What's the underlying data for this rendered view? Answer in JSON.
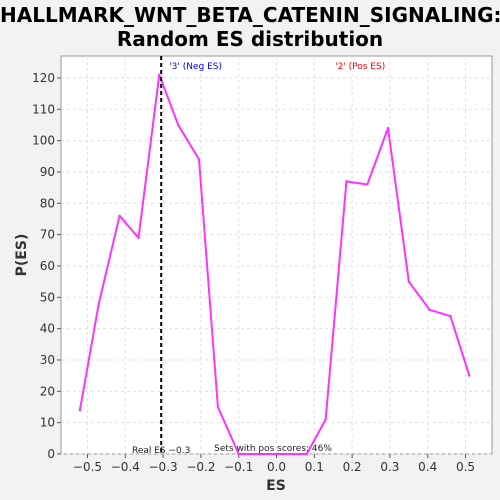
{
  "chart_data": {
    "type": "line",
    "title_lines": [
      "HALLMARK_WNT_BETA_CATENIN_SIGNALING:",
      "Random ES distribution"
    ],
    "xlabel": "ES",
    "ylabel": "P(ES)",
    "xlim": [
      -0.57,
      0.57
    ],
    "ylim": [
      0,
      127
    ],
    "x_ticks": [
      -0.5,
      -0.4,
      -0.3,
      -0.2,
      -0.1,
      0.0,
      0.1,
      0.2,
      0.3,
      0.4,
      0.5
    ],
    "y_ticks": [
      0,
      10,
      20,
      30,
      40,
      50,
      60,
      70,
      80,
      90,
      100,
      110,
      120
    ],
    "grid": true,
    "series": [
      {
        "color": "#ff33ff",
        "x": [
          -0.52,
          -0.47,
          -0.415,
          -0.365,
          -0.31,
          -0.26,
          -0.205,
          -0.155,
          -0.1,
          -0.045,
          0.005,
          0.06,
          0.08,
          0.13,
          0.185,
          0.24,
          0.295,
          0.35,
          0.405,
          0.46,
          0.51
        ],
        "y": [
          14,
          48,
          76,
          69,
          121,
          105,
          94,
          15,
          0,
          0,
          0,
          0,
          0,
          11,
          87,
          86,
          104,
          55,
          46,
          44,
          25
        ]
      }
    ],
    "real_es_line": {
      "x": -0.305,
      "color": "#000000",
      "label": "Real ES −0.3"
    },
    "annotations": {
      "neg_label": {
        "text": "'3' (Neg ES)",
        "color": "#0000ff"
      },
      "pos_label": {
        "text": "'2' (Pos ES)",
        "color": "#ff0000"
      },
      "pos_scores": {
        "text": "Sets with pos scores: 46%"
      }
    }
  }
}
